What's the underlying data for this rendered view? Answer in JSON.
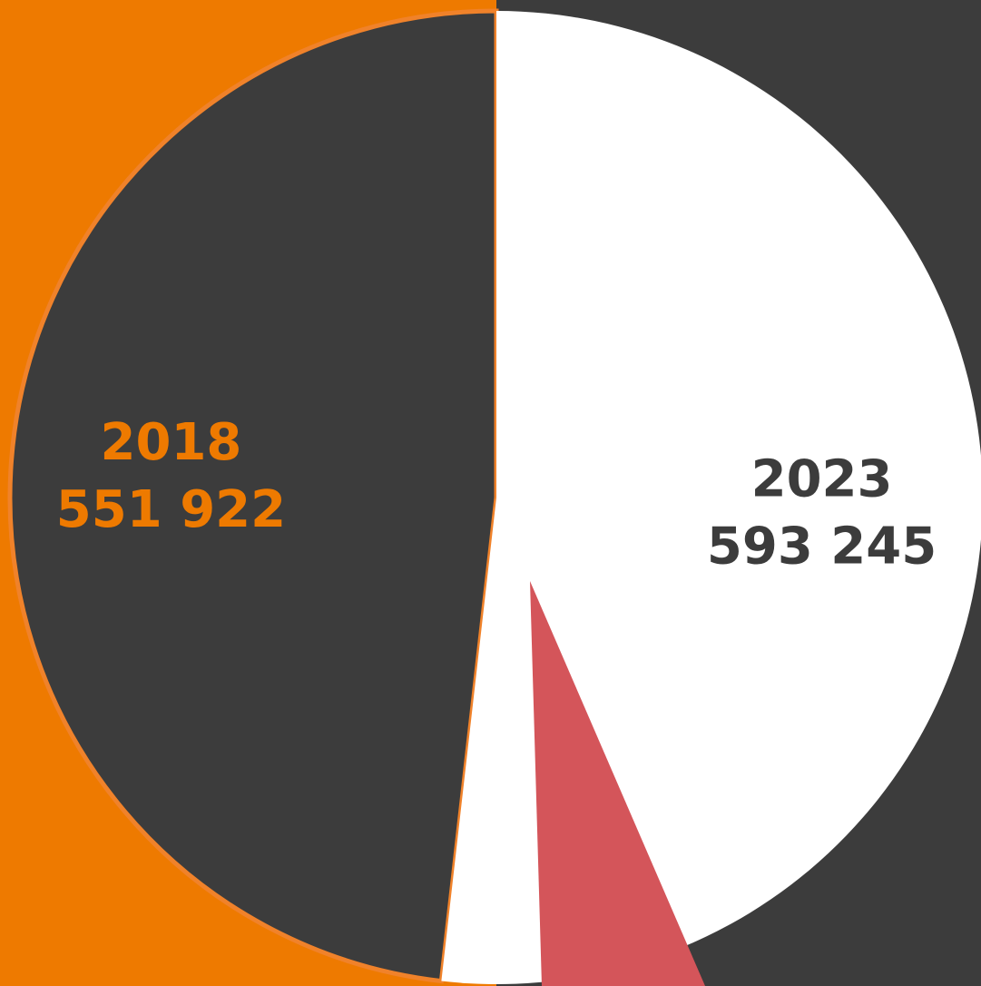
{
  "chart_data": {
    "type": "pie",
    "categories": [
      "2018",
      "2023"
    ],
    "values": [
      551922,
      593245
    ],
    "value_labels": [
      "551 922",
      "593 245"
    ],
    "colors": [
      "#3c3c3c",
      "#ffffff"
    ],
    "label_colors": [
      "#ee7a00",
      "#3c3c3c"
    ],
    "edge_colors": [
      "#f0822a",
      "none"
    ]
  }
}
